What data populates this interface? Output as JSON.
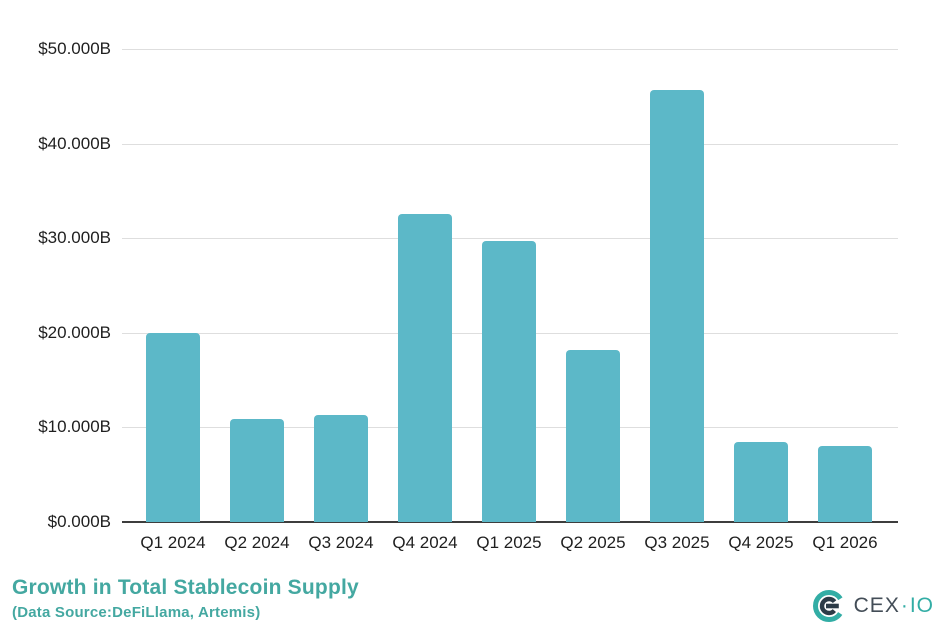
{
  "chart_data": {
    "type": "bar",
    "title": "Growth in Total Stablecoin Supply",
    "subtitle": "(Data Source:DeFiLlama, Artemis)",
    "categories": [
      "Q1 2024",
      "Q2 2024",
      "Q3 2024",
      "Q4 2024",
      "Q1 2025",
      "Q2 2025",
      "Q3 2025",
      "Q4 2025",
      "Q1 2026"
    ],
    "values": [
      20.0,
      10.9,
      11.3,
      32.6,
      29.7,
      18.2,
      45.7,
      8.5,
      8.0
    ],
    "unit": "$B",
    "ylim": [
      0,
      50
    ],
    "ytick_interval": 10,
    "yticks": [
      "$0.000B",
      "$10.000B",
      "$20.000B",
      "$30.000B",
      "$40.000B",
      "$50.000B"
    ],
    "xlabel": "",
    "ylabel": "",
    "grid": true,
    "legend": false,
    "bar_color": "#5cb8c8"
  },
  "branding": {
    "logo_text_primary": "CEX",
    "logo_separator": "·",
    "logo_text_secondary": "IO"
  },
  "colors": {
    "accent": "#44a8a1",
    "bar": "#5cb8c8",
    "grid": "#dedede",
    "axis": "#3d3d3d",
    "tick_text": "#1f1f1f",
    "logo_teal": "#32ada5",
    "logo_dark": "#2c3b47"
  }
}
